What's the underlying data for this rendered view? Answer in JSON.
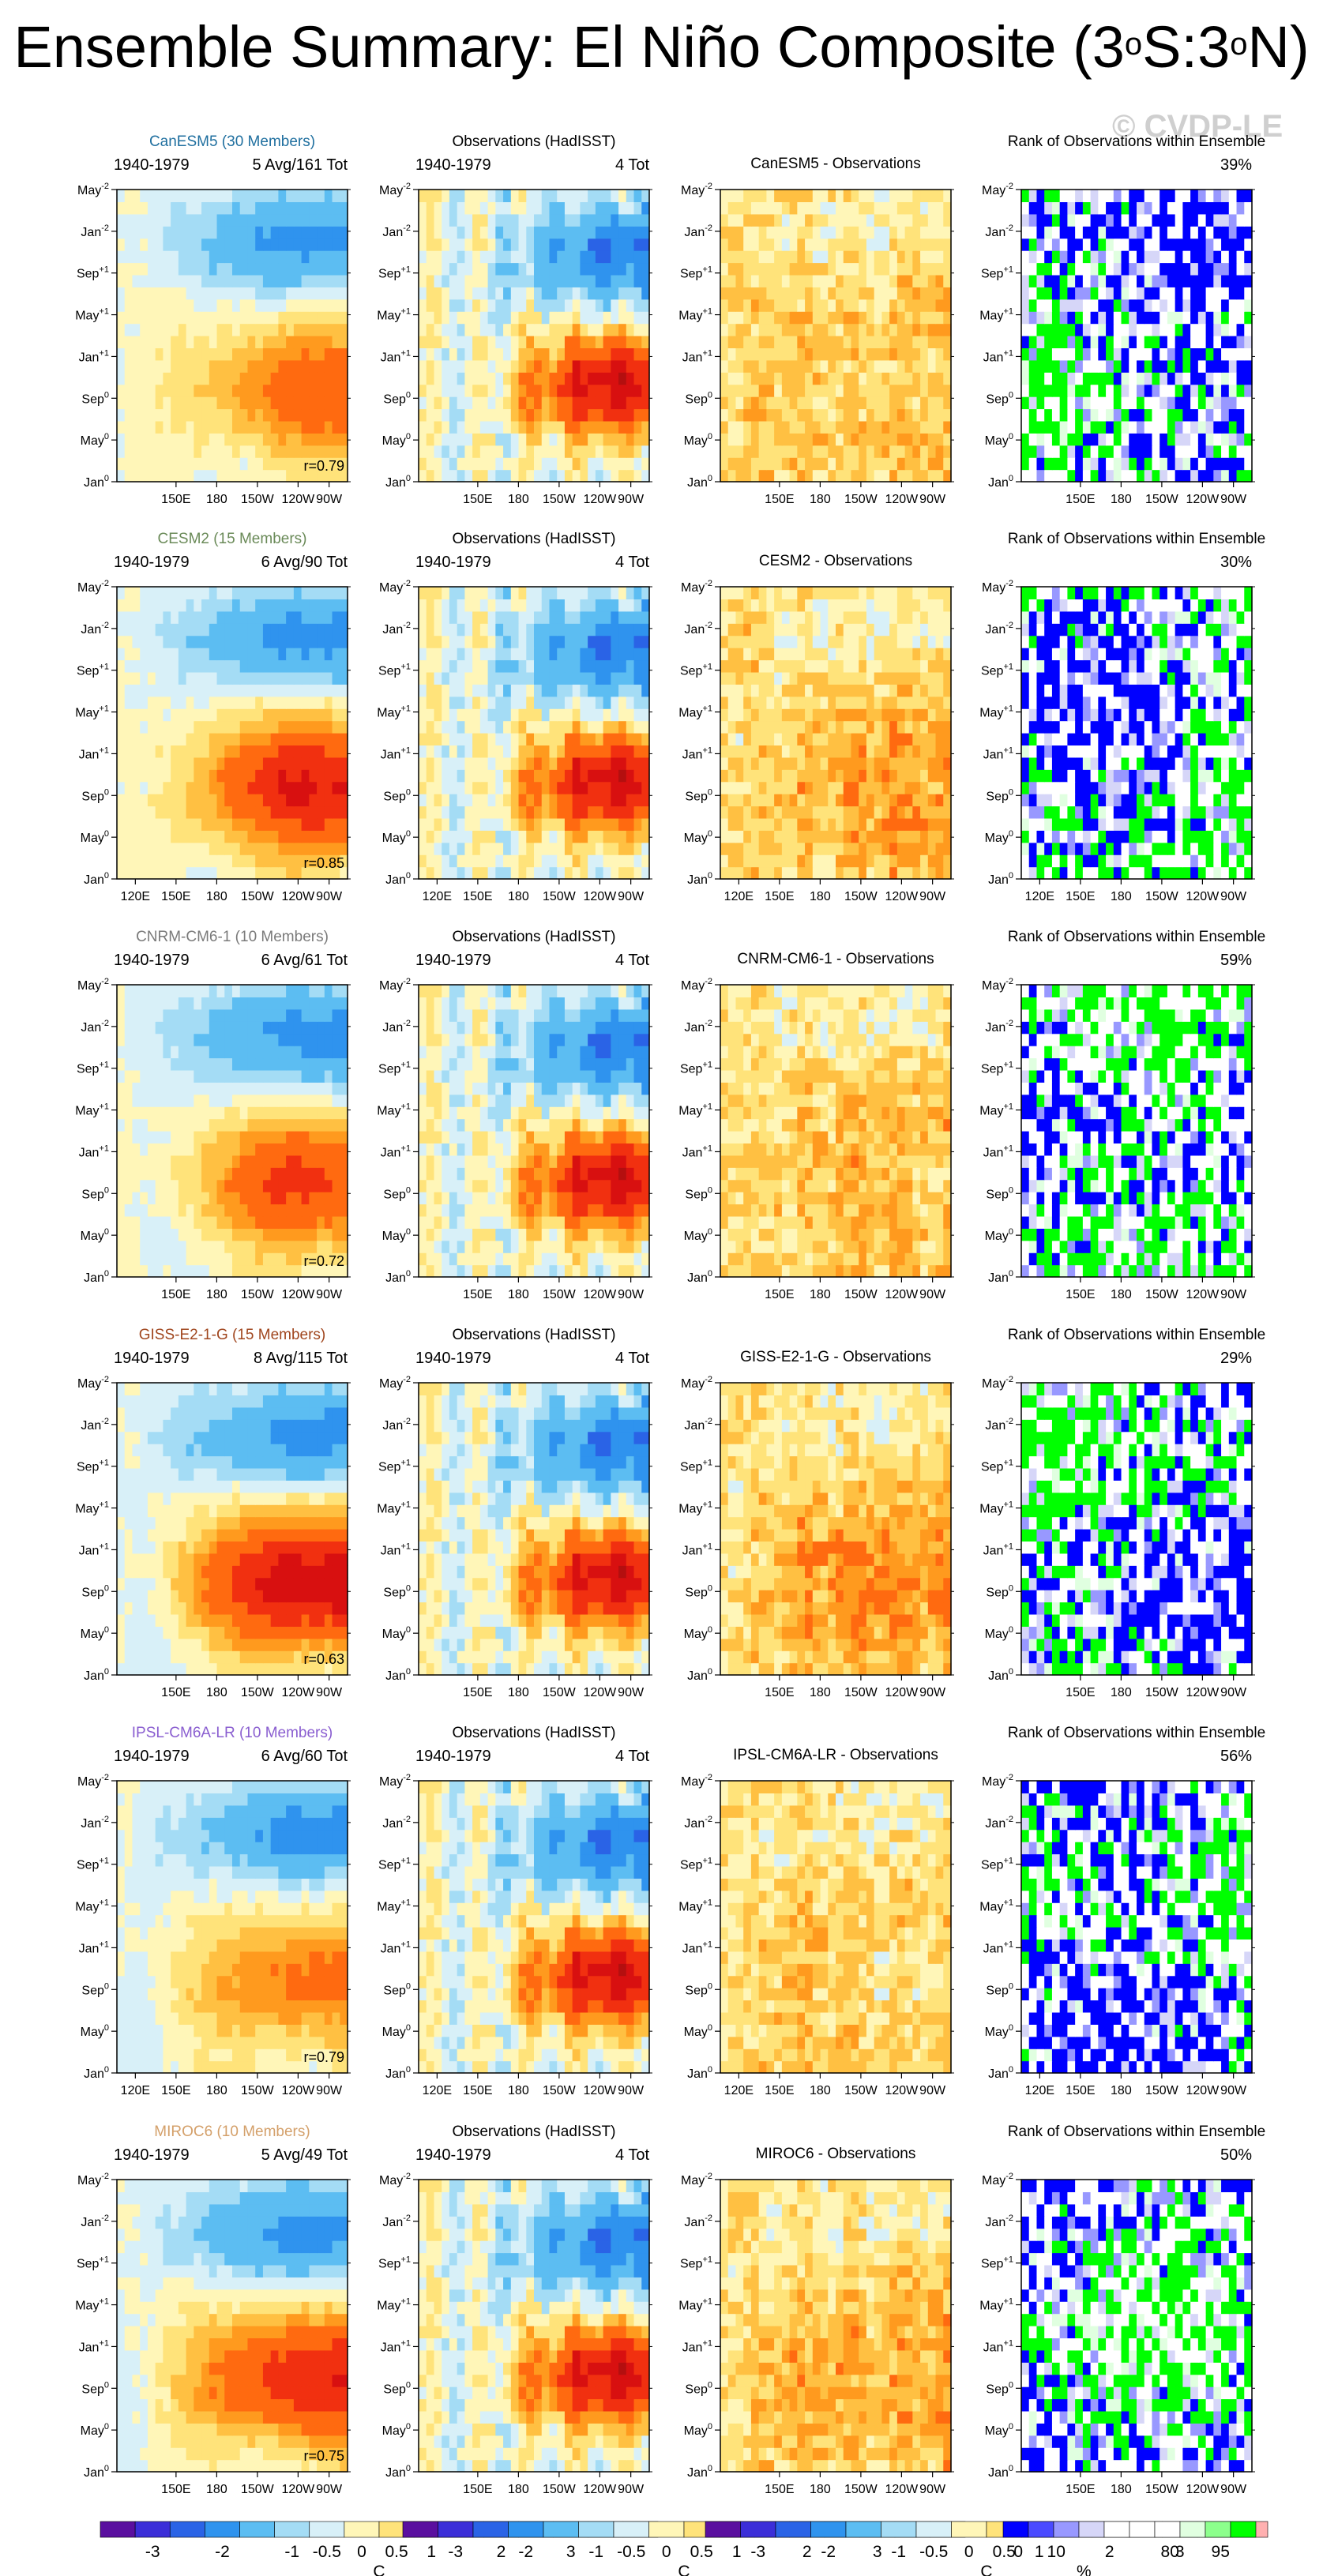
{
  "title": {
    "main": "Ensemble Summary: El Niño Composite (3",
    "deg1": "o",
    "mid": "S:3",
    "deg2": "o",
    "end": "N)"
  },
  "watermark": "© CVDP-LE",
  "colors": {
    "temp_scale": [
      "#5a0f9f",
      "#3b2ed8",
      "#2a63e6",
      "#2f93ee",
      "#5cbdf2",
      "#a4dcf5",
      "#d8f0f8",
      "#fff6b8",
      "#ffe37a",
      "#ffc042",
      "#ff9a1e",
      "#ff6a10",
      "#f13010",
      "#d81010",
      "#b40f0f",
      "#ffb0b0"
    ],
    "rank_scale": [
      "#0000ff",
      "#4a4aff",
      "#9898ff",
      "#d6d6f8",
      "#ffffff",
      "#e0ffe0",
      "#8cff8c",
      "#00ff00"
    ]
  },
  "y_tick_labels": [
    {
      "base": "May",
      "sup": "-2"
    },
    {
      "base": "Jan",
      "sup": "-2"
    },
    {
      "base": "Sep",
      "sup": "+1"
    },
    {
      "base": "May",
      "sup": "+1"
    },
    {
      "base": "Jan",
      "sup": "+1"
    },
    {
      "base": "Sep",
      "sup": "0"
    },
    {
      "base": "May",
      "sup": "0"
    },
    {
      "base": "Jan",
      "sup": "0"
    }
  ],
  "chart_data": [
    {
      "model": "CanESM5",
      "header": "CanESM5 (30 Members)",
      "header_color": "#1f6f9f",
      "period": "1940-1979",
      "count": "5 Avg/161 Tot",
      "r": "r=0.79",
      "obs_title": "Observations (HadISST)",
      "obs_count": "4 Tot",
      "diff_title": "CanESM5 - Observations",
      "rank_title": "Rank of Observations within Ensemble",
      "rank_pct": "39%",
      "x_ticks": [
        "150E",
        "180",
        "150W",
        "120W",
        "90W"
      ]
    },
    {
      "model": "CESM2",
      "header": "CESM2 (15 Members)",
      "header_color": "#6a8a58",
      "period": "1940-1979",
      "count": "6 Avg/90 Tot",
      "r": "r=0.85",
      "obs_title": "Observations (HadISST)",
      "obs_count": "4 Tot",
      "diff_title": "CESM2 - Observations",
      "rank_title": "Rank of Observations within Ensemble",
      "rank_pct": "30%",
      "x_ticks": [
        "120E",
        "150E",
        "180",
        "150W",
        "120W",
        "90W"
      ]
    },
    {
      "model": "CNRM-CM6-1",
      "header": "CNRM-CM6-1 (10 Members)",
      "header_color": "#7a7a7a",
      "period": "1940-1979",
      "count": "6 Avg/61 Tot",
      "r": "r=0.72",
      "obs_title": "Observations (HadISST)",
      "obs_count": "4 Tot",
      "diff_title": "CNRM-CM6-1 - Observations",
      "rank_title": "Rank of Observations within Ensemble",
      "rank_pct": "59%",
      "x_ticks": [
        "150E",
        "180",
        "150W",
        "120W",
        "90W"
      ]
    },
    {
      "model": "GISS-E2-1-G",
      "header": "GISS-E2-1-G (15 Members)",
      "header_color": "#a0461e",
      "period": "1940-1979",
      "count": "8 Avg/115 Tot",
      "r": "r=0.63",
      "obs_title": "Observations (HadISST)",
      "obs_count": "4 Tot",
      "diff_title": "GISS-E2-1-G - Observations",
      "rank_title": "Rank of Observations within Ensemble",
      "rank_pct": "29%",
      "x_ticks": [
        "150E",
        "180",
        "150W",
        "120W",
        "90W"
      ]
    },
    {
      "model": "IPSL-CM6A-LR",
      "header": "IPSL-CM6A-LR (10 Members)",
      "header_color": "#8a5ed0",
      "period": "1940-1979",
      "count": "6 Avg/60 Tot",
      "r": "r=0.79",
      "obs_title": "Observations (HadISST)",
      "obs_count": "4 Tot",
      "diff_title": "IPSL-CM6A-LR - Observations",
      "rank_title": "Rank of Observations within Ensemble",
      "rank_pct": "56%",
      "x_ticks": [
        "120E",
        "150E",
        "180",
        "150W",
        "120W",
        "90W"
      ]
    },
    {
      "model": "MIROC6",
      "header": "MIROC6 (10 Members)",
      "header_color": "#d4a06a",
      "period": "1940-1979",
      "count": "5 Avg/49 Tot",
      "r": "r=0.75",
      "obs_title": "Observations (HadISST)",
      "obs_count": "4 Tot",
      "diff_title": "MIROC6 - Observations",
      "rank_title": "Rank of Observations within Ensemble",
      "rank_pct": "50%",
      "x_ticks": [
        "150E",
        "180",
        "150W",
        "120W",
        "90W"
      ]
    }
  ],
  "colorbars": {
    "temp": {
      "labels": [
        "-3",
        "-2",
        "-1",
        "-0.5",
        "0",
        "0.5",
        "1",
        "2",
        "3"
      ],
      "unit": "C"
    },
    "rank": {
      "labels": [
        "0",
        "10",
        "80",
        "95"
      ],
      "unit": "%"
    }
  }
}
